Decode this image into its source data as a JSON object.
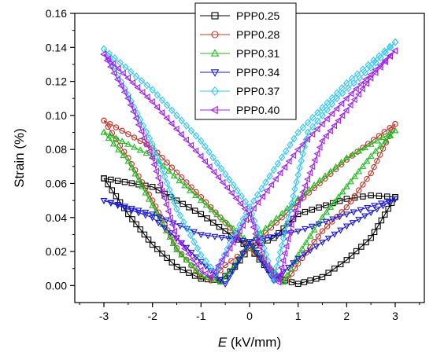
{
  "chart_data": {
    "type": "line",
    "title": "",
    "xlabel": {
      "italic": "E",
      "rest": " (kV/mm)"
    },
    "ylabel": "Strain (%)",
    "xlim": [
      -3.6,
      3.6
    ],
    "ylim": [
      -0.01,
      0.16
    ],
    "xticks": [
      -3,
      -2,
      -1,
      0,
      1,
      2,
      3
    ],
    "xtick_labels": [
      "-3",
      "-2",
      "-1",
      "0",
      "1",
      "2",
      "3"
    ],
    "yticks": [
      0.0,
      0.02,
      0.04,
      0.06,
      0.08,
      0.1,
      0.12,
      0.14,
      0.16
    ],
    "ytick_labels": [
      "0.00",
      "0.02",
      "0.04",
      "0.06",
      "0.08",
      "0.10",
      "0.12",
      "0.14",
      "0.16"
    ],
    "grid": false,
    "legend_position": "top-center",
    "series": [
      {
        "name": "PPP0.25",
        "color": "#000000",
        "marker": "square",
        "upper": [
          [
            -3.0,
            0.063
          ],
          [
            -2.0,
            0.058
          ],
          [
            -1.0,
            0.042
          ],
          [
            0.0,
            0.022
          ],
          [
            0.5,
            0.028
          ],
          [
            1.0,
            0.042
          ],
          [
            2.0,
            0.051
          ],
          [
            2.5,
            0.053
          ],
          [
            3.0,
            0.052
          ]
        ],
        "lower": [
          [
            -3.0,
            0.063
          ],
          [
            -2.5,
            0.042
          ],
          [
            -2.0,
            0.024
          ],
          [
            -1.5,
            0.011
          ],
          [
            -1.0,
            0.004
          ],
          [
            -0.6,
            0.003
          ],
          [
            -0.3,
            0.011
          ],
          [
            0.0,
            0.022
          ],
          [
            0.3,
            0.012
          ],
          [
            0.6,
            0.004
          ],
          [
            1.0,
            0.001
          ],
          [
            1.5,
            0.005
          ],
          [
            2.0,
            0.015
          ],
          [
            2.5,
            0.028
          ],
          [
            3.0,
            0.052
          ]
        ]
      },
      {
        "name": "PPP0.28",
        "color": "#c0392b",
        "marker": "circle",
        "upper": [
          [
            -3.0,
            0.097
          ],
          [
            -2.0,
            0.081
          ],
          [
            -1.0,
            0.052
          ],
          [
            0.0,
            0.022
          ],
          [
            1.0,
            0.049
          ],
          [
            2.0,
            0.074
          ],
          [
            3.0,
            0.095
          ]
        ],
        "lower": [
          [
            -3.0,
            0.097
          ],
          [
            -2.5,
            0.075
          ],
          [
            -2.0,
            0.05
          ],
          [
            -1.5,
            0.022
          ],
          [
            -1.0,
            0.005
          ],
          [
            -0.8,
            0.003
          ],
          [
            -0.5,
            0.012
          ],
          [
            0.0,
            0.022
          ],
          [
            0.5,
            0.008
          ],
          [
            0.8,
            0.004
          ],
          [
            1.0,
            0.013
          ],
          [
            1.5,
            0.032
          ],
          [
            2.0,
            0.046
          ],
          [
            2.5,
            0.066
          ],
          [
            3.0,
            0.095
          ]
        ]
      },
      {
        "name": "PPP0.31",
        "color": "#22bb22",
        "marker": "triangle-up",
        "upper": [
          [
            -3.0,
            0.09
          ],
          [
            -2.0,
            0.076
          ],
          [
            -1.0,
            0.05
          ],
          [
            0.0,
            0.025
          ],
          [
            1.0,
            0.051
          ],
          [
            2.0,
            0.075
          ],
          [
            3.0,
            0.091
          ]
        ],
        "lower": [
          [
            -3.0,
            0.09
          ],
          [
            -2.5,
            0.073
          ],
          [
            -2.0,
            0.047
          ],
          [
            -1.5,
            0.021
          ],
          [
            -1.0,
            0.006
          ],
          [
            -0.6,
            0.002
          ],
          [
            -0.4,
            0.008
          ],
          [
            0.0,
            0.025
          ],
          [
            0.4,
            0.01
          ],
          [
            0.7,
            0.002
          ],
          [
            1.0,
            0.018
          ],
          [
            1.5,
            0.04
          ],
          [
            2.0,
            0.058
          ],
          [
            2.5,
            0.076
          ],
          [
            3.0,
            0.091
          ]
        ]
      },
      {
        "name": "PPP0.34",
        "color": "#1a1ad4",
        "marker": "triangle-down",
        "upper": [
          [
            -3.0,
            0.05
          ],
          [
            -2.0,
            0.042
          ],
          [
            -1.0,
            0.03
          ],
          [
            0.0,
            0.026
          ],
          [
            1.0,
            0.032
          ],
          [
            2.0,
            0.042
          ],
          [
            3.0,
            0.051
          ]
        ],
        "lower": [
          [
            -3.0,
            0.05
          ],
          [
            -2.0,
            0.04
          ],
          [
            -1.5,
            0.028
          ],
          [
            -1.0,
            0.014
          ],
          [
            -0.5,
            0.001
          ],
          [
            0.0,
            0.026
          ],
          [
            0.5,
            0.003
          ],
          [
            1.0,
            0.016
          ],
          [
            2.0,
            0.035
          ],
          [
            3.0,
            0.051
          ]
        ]
      },
      {
        "name": "PPP0.37",
        "color": "#33c6f4",
        "marker": "diamond",
        "upper": [
          [
            -3.0,
            0.139
          ],
          [
            -2.0,
            0.115
          ],
          [
            -1.0,
            0.085
          ],
          [
            0.0,
            0.046
          ],
          [
            0.5,
            0.068
          ],
          [
            1.0,
            0.09
          ],
          [
            2.0,
            0.119
          ],
          [
            3.0,
            0.143
          ]
        ],
        "lower": [
          [
            -3.0,
            0.139
          ],
          [
            -2.5,
            0.112
          ],
          [
            -2.0,
            0.083
          ],
          [
            -1.5,
            0.045
          ],
          [
            -1.0,
            0.018
          ],
          [
            -0.7,
            0.007
          ],
          [
            -0.4,
            0.025
          ],
          [
            0.0,
            0.046
          ],
          [
            0.3,
            0.022
          ],
          [
            0.5,
            0.003
          ],
          [
            0.8,
            0.04
          ],
          [
            1.2,
            0.09
          ],
          [
            1.8,
            0.11
          ],
          [
            2.5,
            0.128
          ],
          [
            3.0,
            0.143
          ]
        ]
      },
      {
        "name": "PPP0.40",
        "color": "#a020f0",
        "marker": "triangle-left",
        "upper": [
          [
            -3.0,
            0.136
          ],
          [
            -2.0,
            0.108
          ],
          [
            -1.0,
            0.076
          ],
          [
            0.0,
            0.042
          ],
          [
            1.0,
            0.08
          ],
          [
            2.0,
            0.11
          ],
          [
            3.0,
            0.138
          ]
        ],
        "lower": [
          [
            -3.0,
            0.136
          ],
          [
            -2.5,
            0.11
          ],
          [
            -2.0,
            0.075
          ],
          [
            -1.5,
            0.028
          ],
          [
            -1.0,
            0.009
          ],
          [
            -0.8,
            0.005
          ],
          [
            -0.4,
            0.022
          ],
          [
            0.0,
            0.042
          ],
          [
            0.3,
            0.015
          ],
          [
            0.6,
            0.002
          ],
          [
            0.9,
            0.04
          ],
          [
            1.5,
            0.085
          ],
          [
            2.0,
            0.103
          ],
          [
            2.5,
            0.122
          ],
          [
            3.0,
            0.138
          ]
        ]
      }
    ]
  }
}
